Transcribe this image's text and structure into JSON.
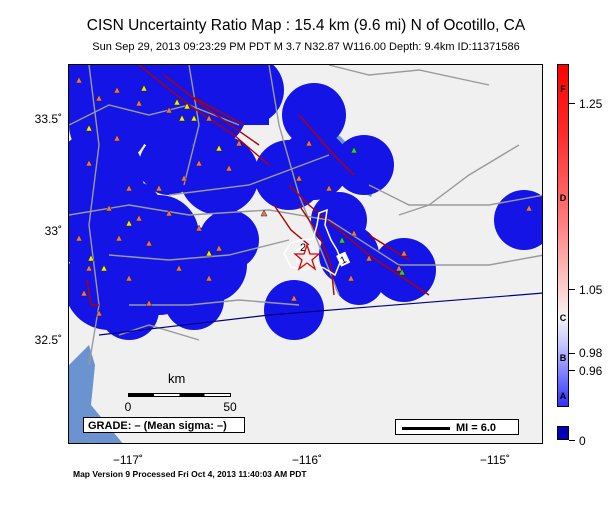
{
  "header": {
    "title": "CISN Uncertainty Ratio Map : 15.4 km (9.6 mi) N of Ocotillo, CA",
    "subtitle": "Sun Sep 29, 2013 09:23:29 PM PDT    M 3.7    N32.87 W116.00   Depth: 9.4km    ID:11371586"
  },
  "axes": {
    "y_ticks": [
      "33.5˚",
      "33˚",
      "32.5˚"
    ],
    "x_ticks": [
      "−117˚",
      "−116˚",
      "−115˚"
    ]
  },
  "map": {
    "epicenter_icon": "star-icon",
    "contour_labels": [
      "2",
      "1"
    ],
    "colors": {
      "uncertainty": "#1414e6",
      "fault": "#b00000",
      "station_red": "#f07060",
      "station_yellow": "#f0f000",
      "station_green": "#30d030",
      "water": "#6a93d0",
      "roads": "#9a9a9a"
    }
  },
  "scale": {
    "label": "km",
    "start": "0",
    "end": "50"
  },
  "grade_box": {
    "text": "GRADE: – (Mean sigma: –)"
  },
  "mi_box": {
    "text": "MI = 6.0"
  },
  "colorbar": {
    "letters": [
      "F",
      "D",
      "C",
      "B",
      "A"
    ],
    "values": [
      "1.25",
      "1.05",
      "0.98",
      "0.96",
      "0"
    ]
  },
  "footer": {
    "text": "Map Version 9 Processed Fri Oct  4, 2013 11:40:03 AM PDT"
  }
}
